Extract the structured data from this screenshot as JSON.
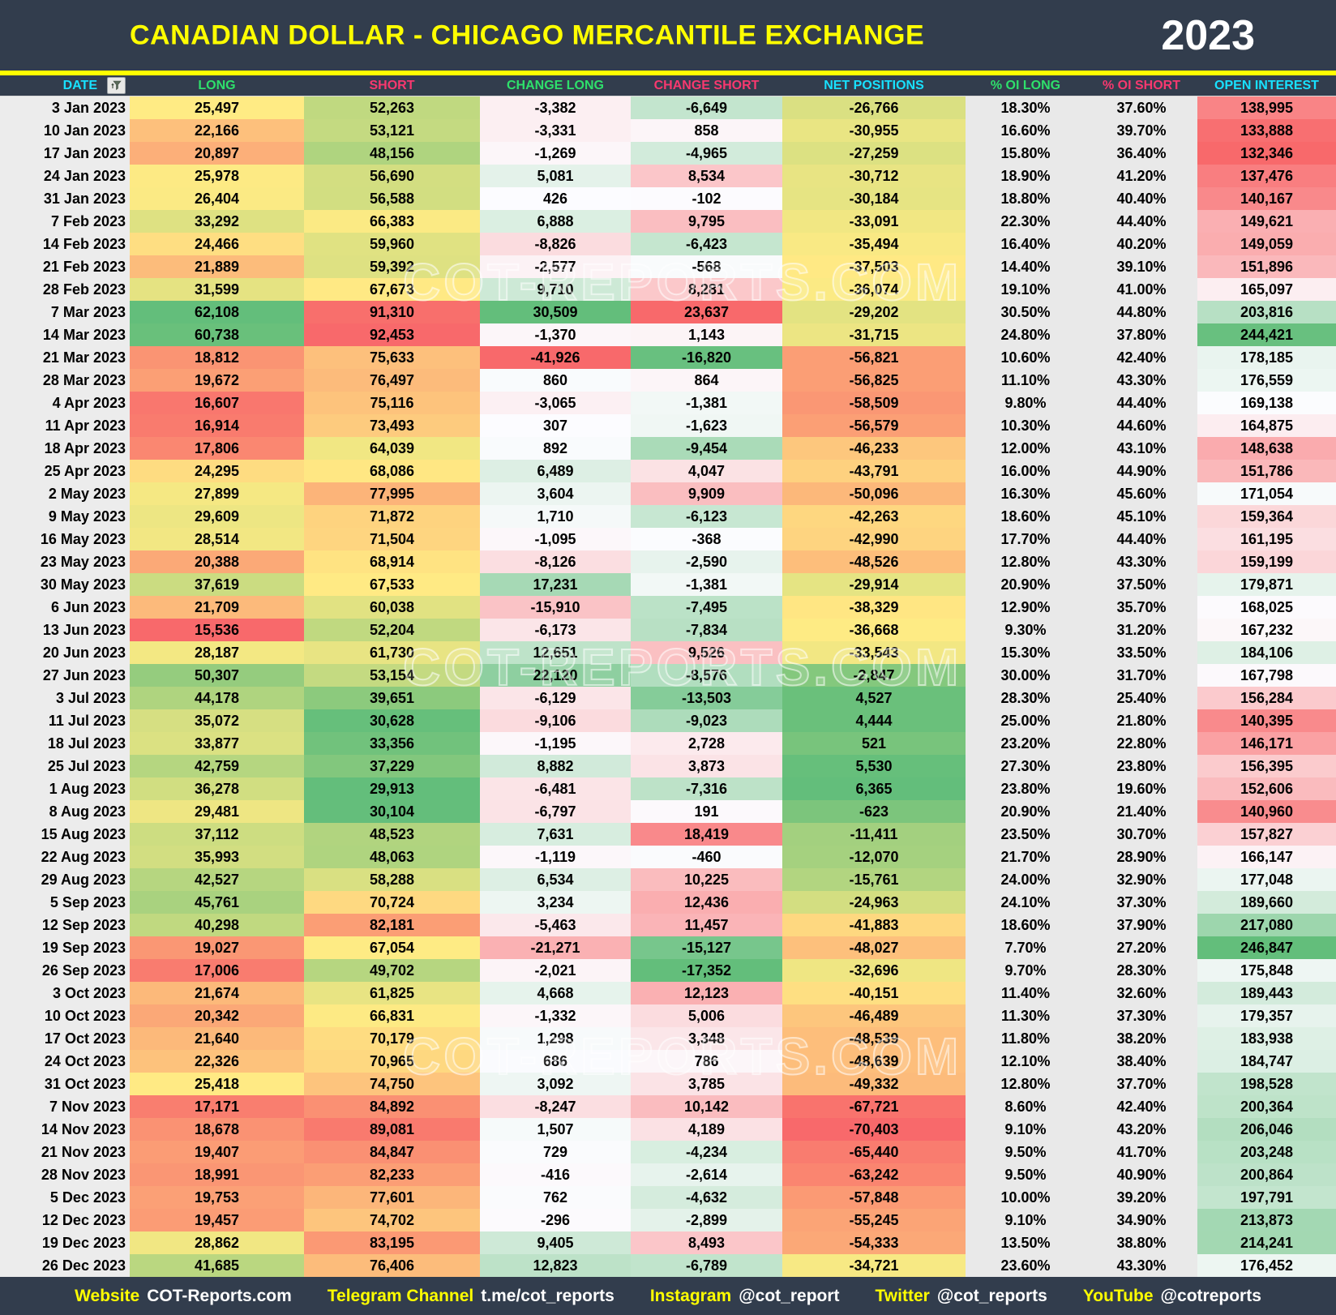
{
  "header": {
    "title": "CANADIAN DOLLAR - CHICAGO MERCANTILE EXCHANGE",
    "year": "2023"
  },
  "watermark": "COT-REPORTS.COM",
  "colors": {
    "navy": "#323D4D",
    "accent_yellow": "#FFFF00",
    "heading_cyan": "#18E1FF",
    "heading_green": "#2EE06B",
    "heading_pink": "#F8386F",
    "scale_red": "#F8696B",
    "scale_yellow": "#FFEB84",
    "scale_green": "#63BE7B",
    "scale_white": "#FCFCFF",
    "gray_date": "#ECECEC",
    "gray_pct": "#E9E9E9"
  },
  "chart_data": {
    "type": "table",
    "title": "CANADIAN DOLLAR - CHICAGO MERCANTILE EXCHANGE",
    "subtitle": "2023",
    "columns": [
      {
        "key": "date",
        "label": "DATE",
        "heading_color": "#18E1FF",
        "format": "text",
        "scale": "none_date"
      },
      {
        "key": "long",
        "label": "LONG",
        "heading_color": "#2EE06B",
        "format": "int",
        "scale": "ryg"
      },
      {
        "key": "short",
        "label": "SHORT",
        "heading_color": "#F8386F",
        "format": "int",
        "scale": "ryg_inv"
      },
      {
        "key": "change_long",
        "label": "CHANGE LONG",
        "heading_color": "#2EE06B",
        "format": "int",
        "scale": "rwg"
      },
      {
        "key": "change_short",
        "label": "CHANGE SHORT",
        "heading_color": "#F8386F",
        "format": "int",
        "scale": "rwg_inv"
      },
      {
        "key": "net_positions",
        "label": "NET POSITIONS",
        "heading_color": "#18E1FF",
        "format": "int",
        "scale": "ryg"
      },
      {
        "key": "oi_long_pct",
        "label": "% OI LONG",
        "heading_color": "#2EE06B",
        "format": "pct",
        "scale": "none_pct"
      },
      {
        "key": "oi_short_pct",
        "label": "% OI SHORT",
        "heading_color": "#F8386F",
        "format": "pct",
        "scale": "none_pct"
      },
      {
        "key": "open_interest",
        "label": "OPEN INTEREST",
        "heading_color": "#18E1FF",
        "format": "int",
        "scale": "rwg"
      }
    ],
    "rows": [
      [
        "3 Jan 2023",
        25497,
        52263,
        -3382,
        -6649,
        -26766,
        18.3,
        37.6,
        138995
      ],
      [
        "10 Jan 2023",
        22166,
        53121,
        -3331,
        858,
        -30955,
        16.6,
        39.7,
        133888
      ],
      [
        "17 Jan 2023",
        20897,
        48156,
        -1269,
        -4965,
        -27259,
        15.8,
        36.4,
        132346
      ],
      [
        "24 Jan 2023",
        25978,
        56690,
        5081,
        8534,
        -30712,
        18.9,
        41.2,
        137476
      ],
      [
        "31 Jan 2023",
        26404,
        56588,
        426,
        -102,
        -30184,
        18.8,
        40.4,
        140167
      ],
      [
        "7 Feb 2023",
        33292,
        66383,
        6888,
        9795,
        -33091,
        22.3,
        44.4,
        149621
      ],
      [
        "14 Feb 2023",
        24466,
        59960,
        -8826,
        -6423,
        -35494,
        16.4,
        40.2,
        149059
      ],
      [
        "21 Feb 2023",
        21889,
        59392,
        -2577,
        -568,
        -37503,
        14.4,
        39.1,
        151896
      ],
      [
        "28 Feb 2023",
        31599,
        67673,
        9710,
        8281,
        -36074,
        19.1,
        41,
        165097
      ],
      [
        "7 Mar 2023",
        62108,
        91310,
        30509,
        23637,
        -29202,
        30.5,
        44.8,
        203816
      ],
      [
        "14 Mar 2023",
        60738,
        92453,
        -1370,
        1143,
        -31715,
        24.8,
        37.8,
        244421
      ],
      [
        "21 Mar 2023",
        18812,
        75633,
        -41926,
        -16820,
        -56821,
        10.6,
        42.4,
        178185
      ],
      [
        "28 Mar 2023",
        19672,
        76497,
        860,
        864,
        -56825,
        11.1,
        43.3,
        176559
      ],
      [
        "4 Apr 2023",
        16607,
        75116,
        -3065,
        -1381,
        -58509,
        9.8,
        44.4,
        169138
      ],
      [
        "11 Apr 2023",
        16914,
        73493,
        307,
        -1623,
        -56579,
        10.3,
        44.6,
        164875
      ],
      [
        "18 Apr 2023",
        17806,
        64039,
        892,
        -9454,
        -46233,
        12,
        43.1,
        148638
      ],
      [
        "25 Apr 2023",
        24295,
        68086,
        6489,
        4047,
        -43791,
        16,
        44.9,
        151786
      ],
      [
        "2 May 2023",
        27899,
        77995,
        3604,
        9909,
        -50096,
        16.3,
        45.6,
        171054
      ],
      [
        "9 May 2023",
        29609,
        71872,
        1710,
        -6123,
        -42263,
        18.6,
        45.1,
        159364
      ],
      [
        "16 May 2023",
        28514,
        71504,
        -1095,
        -368,
        -42990,
        17.7,
        44.4,
        161195
      ],
      [
        "23 May 2023",
        20388,
        68914,
        -8126,
        -2590,
        -48526,
        12.8,
        43.3,
        159199
      ],
      [
        "30 May 2023",
        37619,
        67533,
        17231,
        -1381,
        -29914,
        20.9,
        37.5,
        179871
      ],
      [
        "6 Jun 2023",
        21709,
        60038,
        -15910,
        -7495,
        -38329,
        12.9,
        35.7,
        168025
      ],
      [
        "13 Jun 2023",
        15536,
        52204,
        -6173,
        -7834,
        -36668,
        9.3,
        31.2,
        167232
      ],
      [
        "20 Jun 2023",
        28187,
        61730,
        12651,
        9526,
        -33543,
        15.3,
        33.5,
        184106
      ],
      [
        "27 Jun 2023",
        50307,
        53154,
        22120,
        -8576,
        -2847,
        30,
        31.7,
        167798
      ],
      [
        "3 Jul 2023",
        44178,
        39651,
        -6129,
        -13503,
        4527,
        28.3,
        25.4,
        156284
      ],
      [
        "11 Jul 2023",
        35072,
        30628,
        -9106,
        -9023,
        4444,
        25,
        21.8,
        140395
      ],
      [
        "18 Jul 2023",
        33877,
        33356,
        -1195,
        2728,
        521,
        23.2,
        22.8,
        146171
      ],
      [
        "25 Jul 2023",
        42759,
        37229,
        8882,
        3873,
        5530,
        27.3,
        23.8,
        156395
      ],
      [
        "1 Aug 2023",
        36278,
        29913,
        -6481,
        -7316,
        6365,
        23.8,
        19.6,
        152606
      ],
      [
        "8 Aug 2023",
        29481,
        30104,
        -6797,
        191,
        -623,
        20.9,
        21.4,
        140960
      ],
      [
        "15 Aug 2023",
        37112,
        48523,
        7631,
        18419,
        -11411,
        23.5,
        30.7,
        157827
      ],
      [
        "22 Aug 2023",
        35993,
        48063,
        -1119,
        -460,
        -12070,
        21.7,
        28.9,
        166147
      ],
      [
        "29 Aug 2023",
        42527,
        58288,
        6534,
        10225,
        -15761,
        24,
        32.9,
        177048
      ],
      [
        "5 Sep 2023",
        45761,
        70724,
        3234,
        12436,
        -24963,
        24.1,
        37.3,
        189660
      ],
      [
        "12 Sep 2023",
        40298,
        82181,
        -5463,
        11457,
        -41883,
        18.6,
        37.9,
        217080
      ],
      [
        "19 Sep 2023",
        19027,
        67054,
        -21271,
        -15127,
        -48027,
        7.7,
        27.2,
        246847
      ],
      [
        "26 Sep 2023",
        17006,
        49702,
        -2021,
        -17352,
        -32696,
        9.7,
        28.3,
        175848
      ],
      [
        "3 Oct 2023",
        21674,
        61825,
        4668,
        12123,
        -40151,
        11.4,
        32.6,
        189443
      ],
      [
        "10 Oct 2023",
        20342,
        66831,
        -1332,
        5006,
        -46489,
        11.3,
        37.3,
        179357
      ],
      [
        "17 Oct 2023",
        21640,
        70179,
        1298,
        3348,
        -48539,
        11.8,
        38.2,
        183938
      ],
      [
        "24 Oct 2023",
        22326,
        70965,
        686,
        786,
        -48639,
        12.1,
        38.4,
        184747
      ],
      [
        "31 Oct 2023",
        25418,
        74750,
        3092,
        3785,
        -49332,
        12.8,
        37.7,
        198528
      ],
      [
        "7 Nov 2023",
        17171,
        84892,
        -8247,
        10142,
        -67721,
        8.6,
        42.4,
        200364
      ],
      [
        "14 Nov 2023",
        18678,
        89081,
        1507,
        4189,
        -70403,
        9.1,
        43.2,
        206046
      ],
      [
        "21 Nov 2023",
        19407,
        84847,
        729,
        -4234,
        -65440,
        9.5,
        41.7,
        203248
      ],
      [
        "28 Nov 2023",
        18991,
        82233,
        -416,
        -2614,
        -63242,
        9.5,
        40.9,
        200864
      ],
      [
        "5 Dec 2023",
        19753,
        77601,
        762,
        -4632,
        -57848,
        10,
        39.2,
        197791
      ],
      [
        "12 Dec 2023",
        19457,
        74702,
        -296,
        -2899,
        -55245,
        9.1,
        34.9,
        213873
      ],
      [
        "19 Dec 2023",
        28862,
        83195,
        9405,
        8493,
        -54333,
        13.5,
        38.8,
        214241
      ],
      [
        "26 Dec 2023",
        41685,
        76406,
        12823,
        -6789,
        -34721,
        23.6,
        43.3,
        176452
      ]
    ]
  },
  "footer": {
    "items": [
      {
        "label": "Website",
        "value": "COT-Reports.com"
      },
      {
        "label": "Telegram Channel",
        "value": "t.me/cot_reports"
      },
      {
        "label": "Instagram",
        "value": "@cot_report"
      },
      {
        "label": "Twitter",
        "value": "@cot_reports"
      },
      {
        "label": "YouTube",
        "value": "@cotreports"
      }
    ]
  }
}
